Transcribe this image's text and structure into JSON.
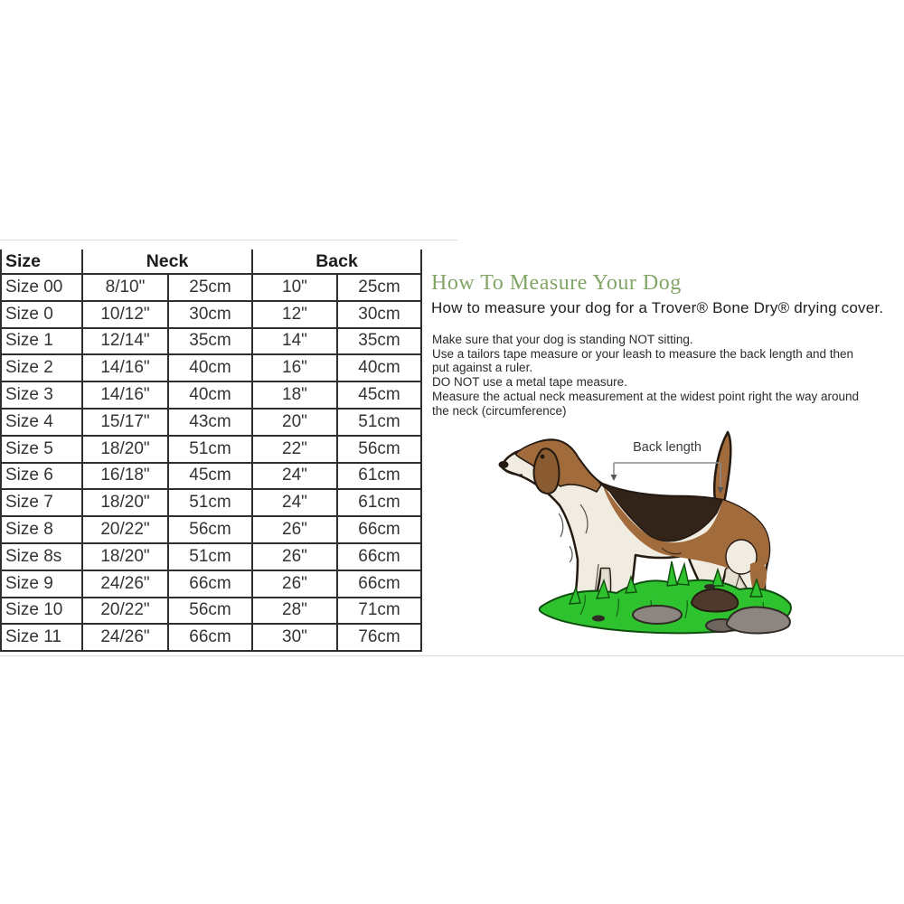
{
  "size_chart": {
    "header": {
      "size": "Size",
      "neck": "Neck",
      "back": "Back"
    },
    "rows": [
      {
        "size": "Size 00",
        "neck_in": "8/10\"",
        "neck_cm": "25cm",
        "back_in": "10\"",
        "back_cm": "25cm"
      },
      {
        "size": "Size 0",
        "neck_in": "10/12\"",
        "neck_cm": "30cm",
        "back_in": "12\"",
        "back_cm": "30cm"
      },
      {
        "size": "Size 1",
        "neck_in": "12/14\"",
        "neck_cm": "35cm",
        "back_in": "14\"",
        "back_cm": "35cm"
      },
      {
        "size": "Size 2",
        "neck_in": "14/16\"",
        "neck_cm": "40cm",
        "back_in": "16\"",
        "back_cm": "40cm"
      },
      {
        "size": "Size 3",
        "neck_in": "14/16\"",
        "neck_cm": "40cm",
        "back_in": "18\"",
        "back_cm": "45cm"
      },
      {
        "size": "Size 4",
        "neck_in": "15/17\"",
        "neck_cm": "43cm",
        "back_in": "20\"",
        "back_cm": "51cm"
      },
      {
        "size": "Size 5",
        "neck_in": "18/20\"",
        "neck_cm": "51cm",
        "back_in": "22\"",
        "back_cm": "56cm"
      },
      {
        "size": "Size 6",
        "neck_in": "16/18\"",
        "neck_cm": "45cm",
        "back_in": "24\"",
        "back_cm": "61cm"
      },
      {
        "size": "Size 7",
        "neck_in": "18/20\"",
        "neck_cm": "51cm",
        "back_in": "24\"",
        "back_cm": "61cm"
      },
      {
        "size": "Size 8",
        "neck_in": "20/22\"",
        "neck_cm": "56cm",
        "back_in": "26\"",
        "back_cm": "66cm"
      },
      {
        "size": "Size 8s",
        "neck_in": "18/20\"",
        "neck_cm": "51cm",
        "back_in": "26\"",
        "back_cm": "66cm"
      },
      {
        "size": "Size 9",
        "neck_in": "24/26\"",
        "neck_cm": "66cm",
        "back_in": "26\"",
        "back_cm": "66cm"
      },
      {
        "size": "Size 10",
        "neck_in": "20/22\"",
        "neck_cm": "56cm",
        "back_in": "28\"",
        "back_cm": "71cm"
      },
      {
        "size": "Size 11",
        "neck_in": "24/26\"",
        "neck_cm": "66cm",
        "back_in": "30\"",
        "back_cm": "76cm"
      }
    ]
  },
  "guide": {
    "heading": "How To Measure Your Dog",
    "intro": "How to measure your dog for a Trover® Bone Dry® drying cover.",
    "instructions": [
      "Make sure that your dog is standing NOT sitting.",
      "Use a tailors tape measure or your leash to measure the back length and then",
      "put against a ruler.",
      "DO NOT use a metal tape measure.",
      "Measure the actual neck measurement at the widest point right the way around",
      "the neck (circumference)"
    ],
    "diagram": {
      "back_length_label": "Back length"
    }
  },
  "colors": {
    "heading_green": "#83a567",
    "table_border": "#2e2e2e",
    "text_dark": "#222222",
    "dog_brown": "#a26b3c",
    "dog_brown_dark": "#8a5a30",
    "dog_saddle": "#33241a",
    "dog_cream": "#f1ece1",
    "dog_outline": "#241a12",
    "grass_green": "#2ec22e",
    "grass_dark": "#0f4d0f",
    "rock_gray": "#8d8680",
    "rock_brown": "#4f382c",
    "bracket_gray": "#8a8a8a"
  }
}
